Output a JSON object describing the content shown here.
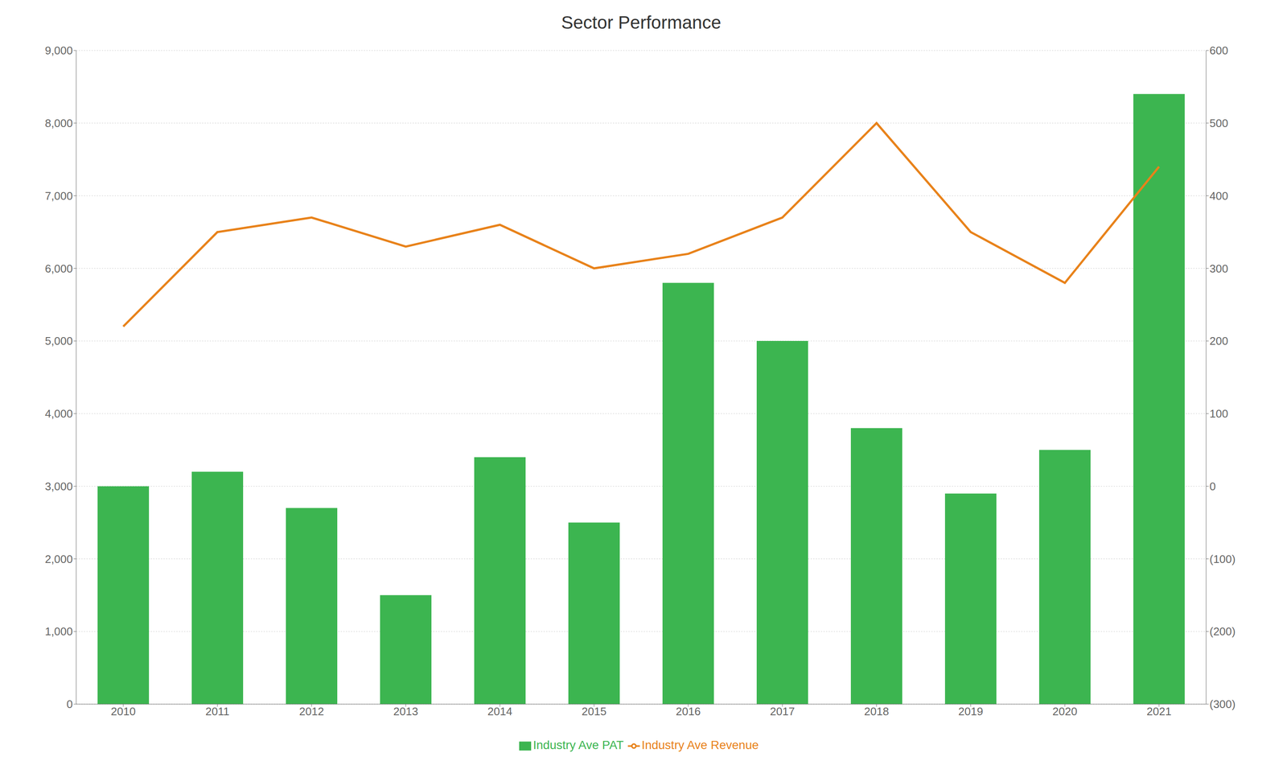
{
  "chart_data": {
    "type": "bar",
    "title": "Sector Performance",
    "categories": [
      "2010",
      "2011",
      "2012",
      "2013",
      "2014",
      "2015",
      "2016",
      "2017",
      "2018",
      "2019",
      "2020",
      "2021"
    ],
    "series": [
      {
        "name": "Industry Ave PAT",
        "type": "bar",
        "color": "#3CB550",
        "values": [
          3000,
          3200,
          2700,
          1500,
          3400,
          2500,
          5800,
          5000,
          3800,
          2900,
          3500,
          8400
        ]
      },
      {
        "name": "Industry Ave Revenue",
        "type": "line",
        "color": "#E8821A",
        "values": [
          5200,
          6500,
          6700,
          6300,
          6600,
          6000,
          6200,
          6700,
          8000,
          6500,
          5800,
          7400
        ]
      }
    ],
    "ylim": [
      0,
      9000
    ],
    "yticks": [
      0,
      {
        "value": 1000,
        "label": "1,000"
      },
      {
        "value": 2000,
        "label": "2,000"
      },
      {
        "value": 3000,
        "label": "3,000"
      },
      {
        "value": 4000,
        "label": "4,000"
      },
      {
        "value": 5000,
        "label": "5,000"
      },
      {
        "value": 6000,
        "label": "6,000"
      },
      {
        "value": 7000,
        "label": "7,000"
      },
      {
        "value": 8000,
        "label": "8,000"
      },
      {
        "value": 9000,
        "label": "9,000"
      }
    ],
    "y2lim": [
      -300,
      600
    ],
    "y2ticks": [
      {
        "value": -300,
        "label": "(300)"
      },
      {
        "value": -200,
        "label": "(200)"
      },
      {
        "value": -100,
        "label": "(100)"
      },
      0,
      100,
      200,
      300,
      400,
      500,
      600
    ],
    "grid": true,
    "legend": "bottom"
  }
}
